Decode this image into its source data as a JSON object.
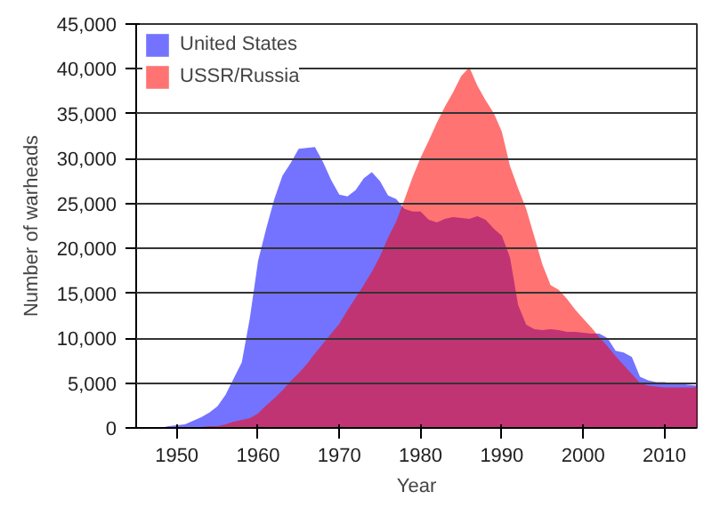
{
  "chart_data": {
    "type": "area",
    "xlabel": "Year",
    "ylabel": "Number of warheads",
    "x": [
      1945,
      1946,
      1947,
      1948,
      1949,
      1950,
      1951,
      1952,
      1953,
      1954,
      1955,
      1956,
      1957,
      1958,
      1959,
      1960,
      1961,
      1962,
      1963,
      1964,
      1965,
      1966,
      1967,
      1968,
      1969,
      1970,
      1971,
      1972,
      1973,
      1974,
      1975,
      1976,
      1977,
      1978,
      1979,
      1980,
      1981,
      1982,
      1983,
      1984,
      1985,
      1986,
      1987,
      1988,
      1989,
      1990,
      1991,
      1992,
      1993,
      1994,
      1995,
      1996,
      1997,
      1998,
      1999,
      2000,
      2001,
      2002,
      2003,
      2004,
      2005,
      2006,
      2007,
      2008,
      2009,
      2010,
      2011,
      2012,
      2013,
      2014
    ],
    "series": [
      {
        "name": "United States",
        "color": "#0000ff",
        "values": [
          0,
          0,
          0,
          0,
          200,
          300,
          400,
          800,
          1200,
          1700,
          2400,
          3700,
          5500,
          7300,
          12300,
          18600,
          22200,
          25500,
          28100,
          29500,
          31100,
          31200,
          31300,
          29600,
          27600,
          26000,
          25800,
          26500,
          27800,
          28500,
          27500,
          25900,
          25500,
          24400,
          24100,
          24100,
          23200,
          22900,
          23300,
          23500,
          23400,
          23300,
          23600,
          23200,
          22200,
          21400,
          19000,
          13700,
          11500,
          11000,
          10900,
          11000,
          10900,
          10700,
          10700,
          10600,
          10500,
          10500,
          10000,
          8600,
          8400,
          7900,
          5700,
          5300,
          5100,
          5100,
          4900,
          4900,
          4800,
          4700
        ]
      },
      {
        "name": "USSR/Russia",
        "color": "#ff0000",
        "values": [
          0,
          0,
          0,
          0,
          0,
          0,
          0,
          100,
          100,
          200,
          200,
          400,
          700,
          900,
          1100,
          1600,
          2500,
          3300,
          4200,
          5200,
          6100,
          7100,
          8300,
          9400,
          10500,
          11600,
          13100,
          14500,
          15900,
          17400,
          19100,
          21200,
          23000,
          25400,
          27900,
          30100,
          32000,
          34000,
          35800,
          37400,
          39200,
          40200,
          38100,
          36500,
          35100,
          33000,
          29200,
          26700,
          24400,
          21300,
          18200,
          15900,
          15400,
          14400,
          13200,
          12200,
          11200,
          10100,
          9100,
          8000,
          7000,
          6000,
          5000,
          4700,
          4600,
          4500,
          4500,
          4500,
          4500,
          4500
        ]
      }
    ],
    "xlim": [
      1945,
      2014
    ],
    "xticks": [
      1950,
      1960,
      1970,
      1980,
      1990,
      2000,
      2010
    ],
    "ylim": [
      0,
      45000
    ],
    "yticks": [
      {
        "value": 0,
        "label": "0"
      },
      {
        "value": 5000,
        "label": "5,000"
      },
      {
        "value": 10000,
        "label": "10,000"
      },
      {
        "value": 15000,
        "label": "15,000"
      },
      {
        "value": 20000,
        "label": "20,000"
      },
      {
        "value": 25000,
        "label": "25,000"
      },
      {
        "value": 30000,
        "label": "30,000"
      },
      {
        "value": 35000,
        "label": "35,000"
      },
      {
        "value": 40000,
        "label": "40,000"
      },
      {
        "value": 45000,
        "label": "45,000"
      }
    ],
    "grid": "y",
    "legend": "top left"
  }
}
